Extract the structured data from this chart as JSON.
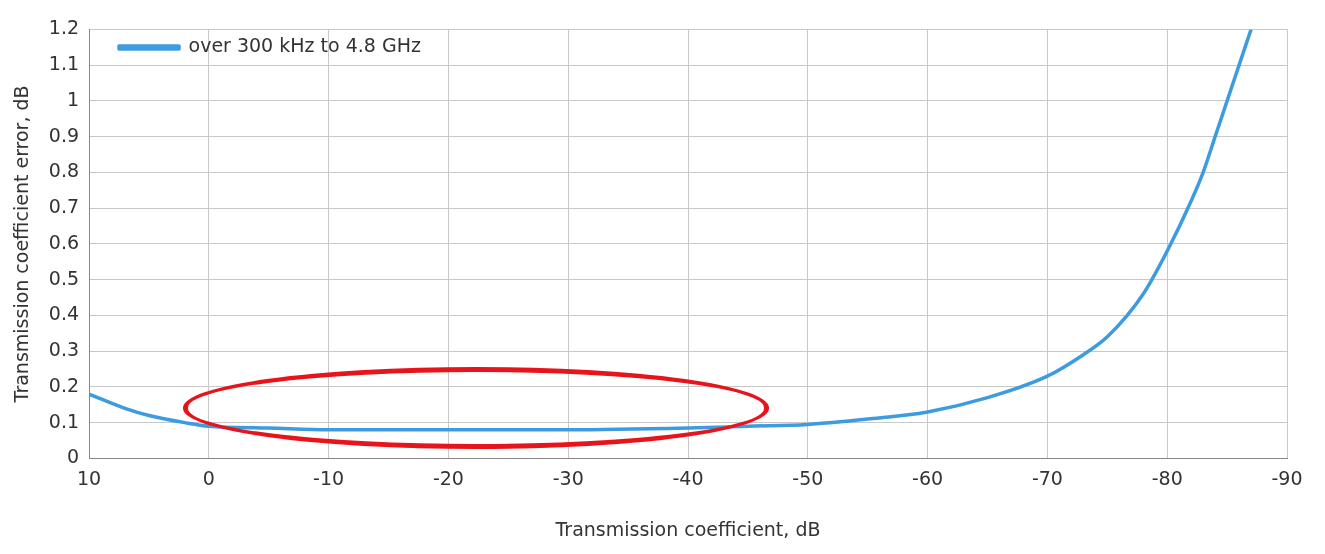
{
  "chart_data": {
    "type": "line",
    "xlabel": "Transmission coefficient, dB",
    "ylabel": "Transmission coefficient error, dB",
    "x": [
      10,
      7,
      5,
      2,
      0,
      -5,
      -10,
      -20,
      -30,
      -40,
      -45,
      -50,
      -55,
      -60,
      -65,
      -70,
      -73,
      -75,
      -78,
      -80,
      -82,
      -83,
      -84,
      -85,
      -86,
      -87
    ],
    "series": [
      {
        "name": "over 300 kHz to 4.8 GHz",
        "color": "#3d9be0",
        "values": [
          0.18,
          0.14,
          0.12,
          0.1,
          0.09,
          0.085,
          0.08,
          0.08,
          0.08,
          0.085,
          0.09,
          0.095,
          0.11,
          0.13,
          0.17,
          0.23,
          0.29,
          0.34,
          0.46,
          0.58,
          0.72,
          0.8,
          0.9,
          1.0,
          1.1,
          1.2
        ]
      }
    ],
    "xlim": [
      10,
      -90
    ],
    "xticks": [
      10,
      0,
      -10,
      -20,
      -30,
      -40,
      -50,
      -60,
      -70,
      -80,
      -90
    ],
    "ylim": [
      0,
      1.2
    ],
    "yticks": [
      0,
      0.1,
      0.2,
      0.3,
      0.4,
      0.5,
      0.6,
      0.7,
      0.8,
      0.9,
      1,
      1.1,
      1.2
    ],
    "grid": true,
    "legend": "top left",
    "marker": "none",
    "line_style": "solid"
  }
}
